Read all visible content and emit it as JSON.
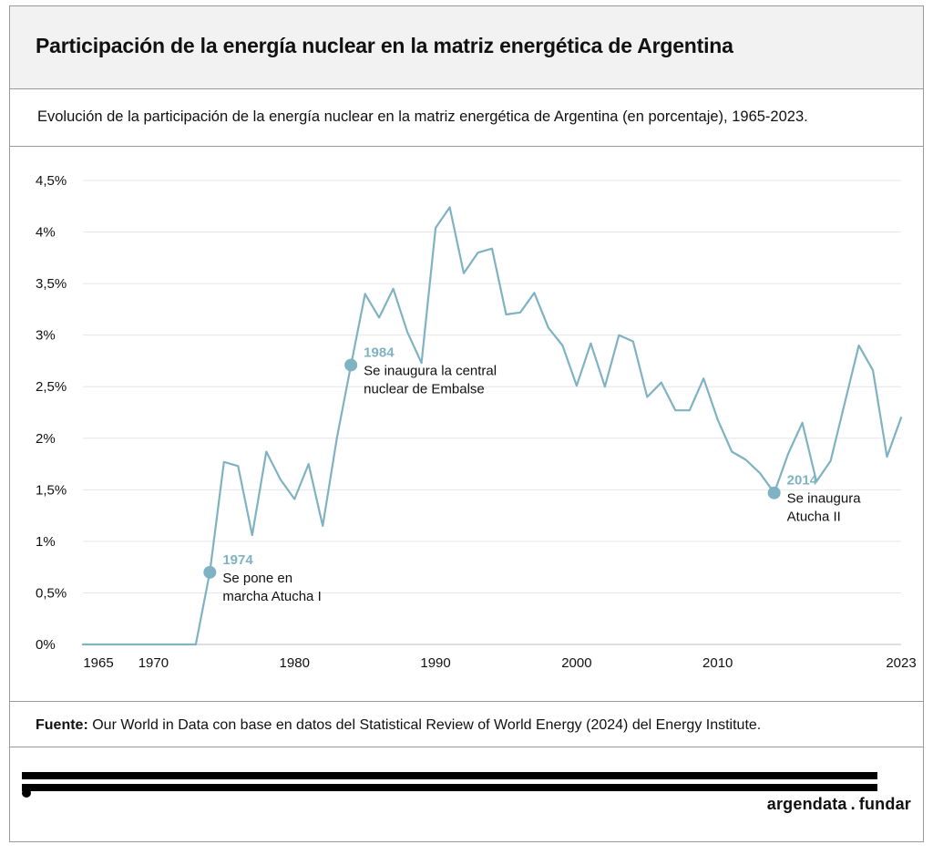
{
  "title": "Participación de la energía nuclear en la matriz energética de Argentina",
  "subtitle": "Evolución de la participación de la energía nuclear en la matriz energética de Argentina (en porcentaje), 1965-2023.",
  "source": {
    "label": "Fuente:",
    "text": "Our World in Data con base en datos del Statistical Review of World Energy (2024) del Energy Institute."
  },
  "brand": {
    "left": "argendata",
    "sep": ".",
    "right": "fundar"
  },
  "colors": {
    "line": "#7fb2c2",
    "grid": "#e6e6e6",
    "annotation_year": "#7fb2c2"
  },
  "chart_data": {
    "type": "line",
    "title": "",
    "xlabel": "",
    "ylabel": "",
    "xlim": [
      1965,
      2023
    ],
    "ylim": [
      0,
      4.5
    ],
    "grid": true,
    "x_ticks": [
      {
        "value": 1965,
        "label": "1965"
      },
      {
        "value": 1970,
        "label": "1970"
      },
      {
        "value": 1980,
        "label": "1980"
      },
      {
        "value": 1990,
        "label": "1990"
      },
      {
        "value": 2000,
        "label": "2000"
      },
      {
        "value": 2010,
        "label": "2010"
      },
      {
        "value": 2023,
        "label": "2023"
      }
    ],
    "y_ticks": [
      {
        "value": 0,
        "label": "0%"
      },
      {
        "value": 0.5,
        "label": "0,5%"
      },
      {
        "value": 1,
        "label": "1%"
      },
      {
        "value": 1.5,
        "label": "1,5%"
      },
      {
        "value": 2,
        "label": "2%"
      },
      {
        "value": 2.5,
        "label": "2,5%"
      },
      {
        "value": 3,
        "label": "3%"
      },
      {
        "value": 3.5,
        "label": "3,5%"
      },
      {
        "value": 4,
        "label": "4%"
      },
      {
        "value": 4.5,
        "label": "4,5%"
      }
    ],
    "series": [
      {
        "name": "Participación nuclear",
        "x": [
          1965,
          1966,
          1967,
          1968,
          1969,
          1970,
          1971,
          1972,
          1973,
          1974,
          1975,
          1976,
          1977,
          1978,
          1979,
          1980,
          1981,
          1982,
          1983,
          1984,
          1985,
          1986,
          1987,
          1988,
          1989,
          1990,
          1991,
          1992,
          1993,
          1994,
          1995,
          1996,
          1997,
          1998,
          1999,
          2000,
          2001,
          2002,
          2003,
          2004,
          2005,
          2006,
          2007,
          2008,
          2009,
          2010,
          2011,
          2012,
          2013,
          2014,
          2015,
          2016,
          2017,
          2018,
          2019,
          2020,
          2021,
          2022,
          2023
        ],
        "values": [
          0,
          0,
          0,
          0,
          0,
          0,
          0,
          0,
          0,
          0.7,
          1.77,
          1.73,
          1.06,
          1.87,
          1.6,
          1.41,
          1.75,
          1.15,
          2.0,
          2.71,
          3.4,
          3.17,
          3.45,
          3.03,
          2.73,
          4.04,
          4.24,
          3.6,
          3.8,
          3.84,
          3.2,
          3.22,
          3.41,
          3.07,
          2.9,
          2.51,
          2.92,
          2.5,
          3.0,
          2.94,
          2.4,
          2.54,
          2.27,
          2.27,
          2.58,
          2.18,
          1.87,
          1.79,
          1.66,
          1.47,
          1.85,
          2.15,
          1.58,
          1.78,
          2.34,
          2.9,
          2.66,
          1.82,
          2.2
        ]
      }
    ],
    "annotations": [
      {
        "x": 1974,
        "y": 0.7,
        "year": "1974",
        "lines": [
          "Se pone en",
          "marcha Atucha I"
        ]
      },
      {
        "x": 1984,
        "y": 2.71,
        "year": "1984",
        "lines": [
          "Se inaugura la central",
          "nuclear de Embalse"
        ]
      },
      {
        "x": 2014,
        "y": 1.47,
        "year": "2014",
        "lines": [
          "Se inaugura",
          "Atucha II"
        ]
      }
    ]
  }
}
